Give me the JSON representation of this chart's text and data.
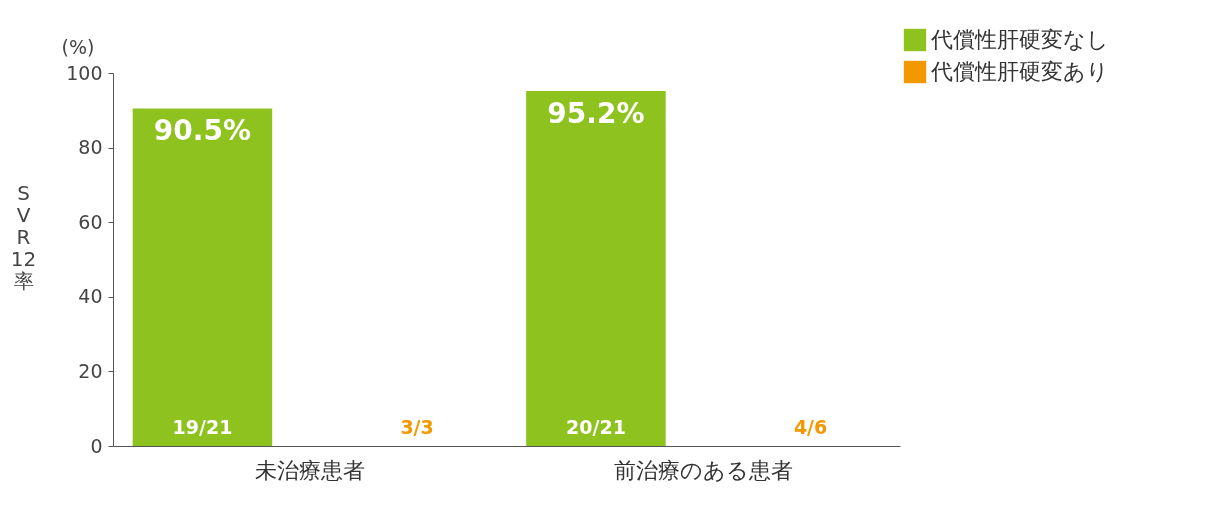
{
  "chart_data": {
    "type": "bar",
    "ylabel": "SVR12率",
    "categories": [
      "未治療患者",
      "前治療のある患者"
    ],
    "series": [
      {
        "name": "代償性肝硬変なし",
        "color": "#8dc21f",
        "values": [
          90.5,
          95.2
        ],
        "value_labels": [
          "90.5%",
          "95.2%"
        ]
      },
      {
        "name": "代償性肝硬変あり",
        "color": "#f39800",
        "values": [
          null,
          null
        ],
        "value_labels": [
          "3/3",
          "4/6"
        ]
      }
    ],
    "annotations": [
      "(%)",
      "19/21",
      "20/21"
    ],
    "ylim": [
      0,
      100
    ],
    "yticks": [
      0,
      20,
      40,
      60,
      80,
      100
    ],
    "grid": false,
    "legend": "top right"
  }
}
